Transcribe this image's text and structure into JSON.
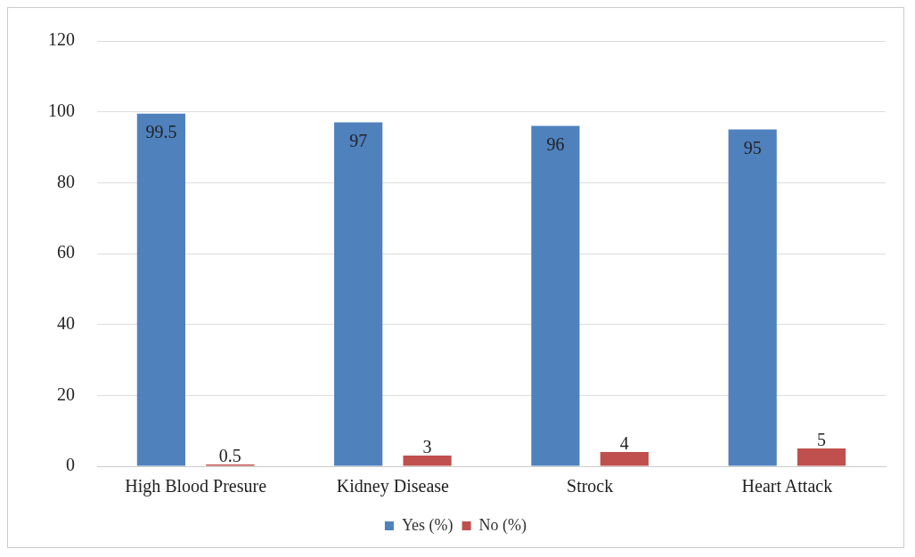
{
  "chart_data": {
    "type": "bar",
    "categories": [
      "High Blood Presure",
      "Kidney Disease",
      "Strock",
      "Heart Attack"
    ],
    "series": [
      {
        "name": "Yes (%)",
        "color": "#4f81bd",
        "values": [
          99.5,
          97,
          96,
          95
        ]
      },
      {
        "name": "No (%)",
        "color": "#c0504d",
        "values": [
          0.5,
          3,
          4,
          5
        ]
      }
    ],
    "ylim": [
      0,
      120
    ],
    "yticks": [
      0,
      20,
      40,
      60,
      80,
      100,
      120
    ],
    "grid": "y",
    "legend": "bottom",
    "data_labels": true
  }
}
